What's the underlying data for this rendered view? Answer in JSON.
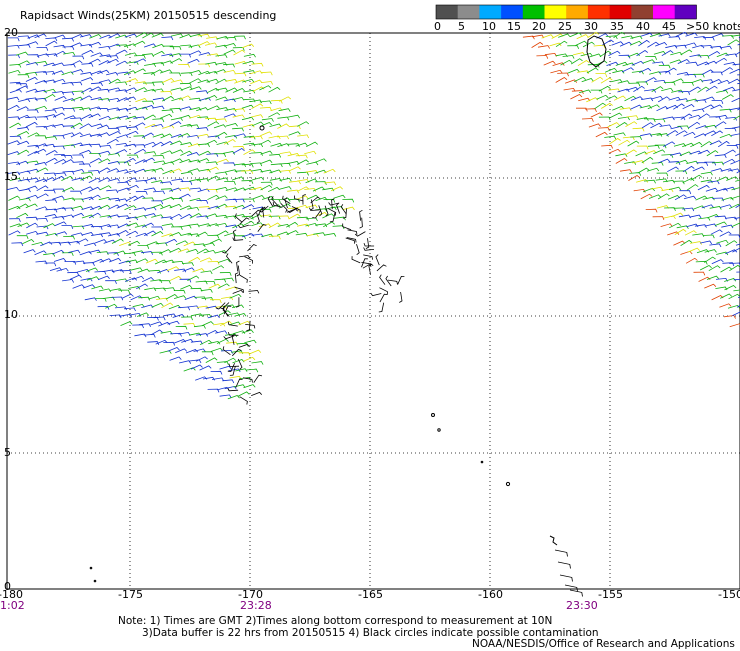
{
  "title": "Rapidsact Winds(25KM) 20150515 descending",
  "legend": {
    "labels": [
      "0",
      "5",
      "10",
      "15",
      "20",
      "25",
      "30",
      "35",
      "40",
      "45",
      ">50 knots"
    ],
    "colors": [
      "#505050",
      "#8c8c8c",
      "#00aaff",
      "#0050ff",
      "#00c000",
      "#ffff00",
      "#ffaa00",
      "#ff3000",
      "#e00000",
      "#904030",
      "#ff00ff",
      "#6000c0"
    ]
  },
  "axes": {
    "x_ticks": [
      "-180",
      "-175",
      "-170",
      "-165",
      "-160",
      "-155",
      "-150"
    ],
    "y_ticks": [
      "20",
      "15",
      "10",
      "5",
      "0"
    ],
    "times": [
      "1:02",
      "23:28",
      "23:30"
    ]
  },
  "notes": {
    "line1": "Note: 1) Times are GMT 2)Times along bottom correspond to measurement at 10N",
    "line2": "3)Data buffer is 22 hrs from 20150515 4) Black circles indicate possible contamination",
    "line3": "NOAA/NESDIS/Office of Research and Applications"
  },
  "palette": {
    "slow": "#1030d0",
    "mid": "#10b010",
    "fast": "#e0e000",
    "strong": "#e04000",
    "flagged": "#000000",
    "weak": "#00b0ff"
  }
}
